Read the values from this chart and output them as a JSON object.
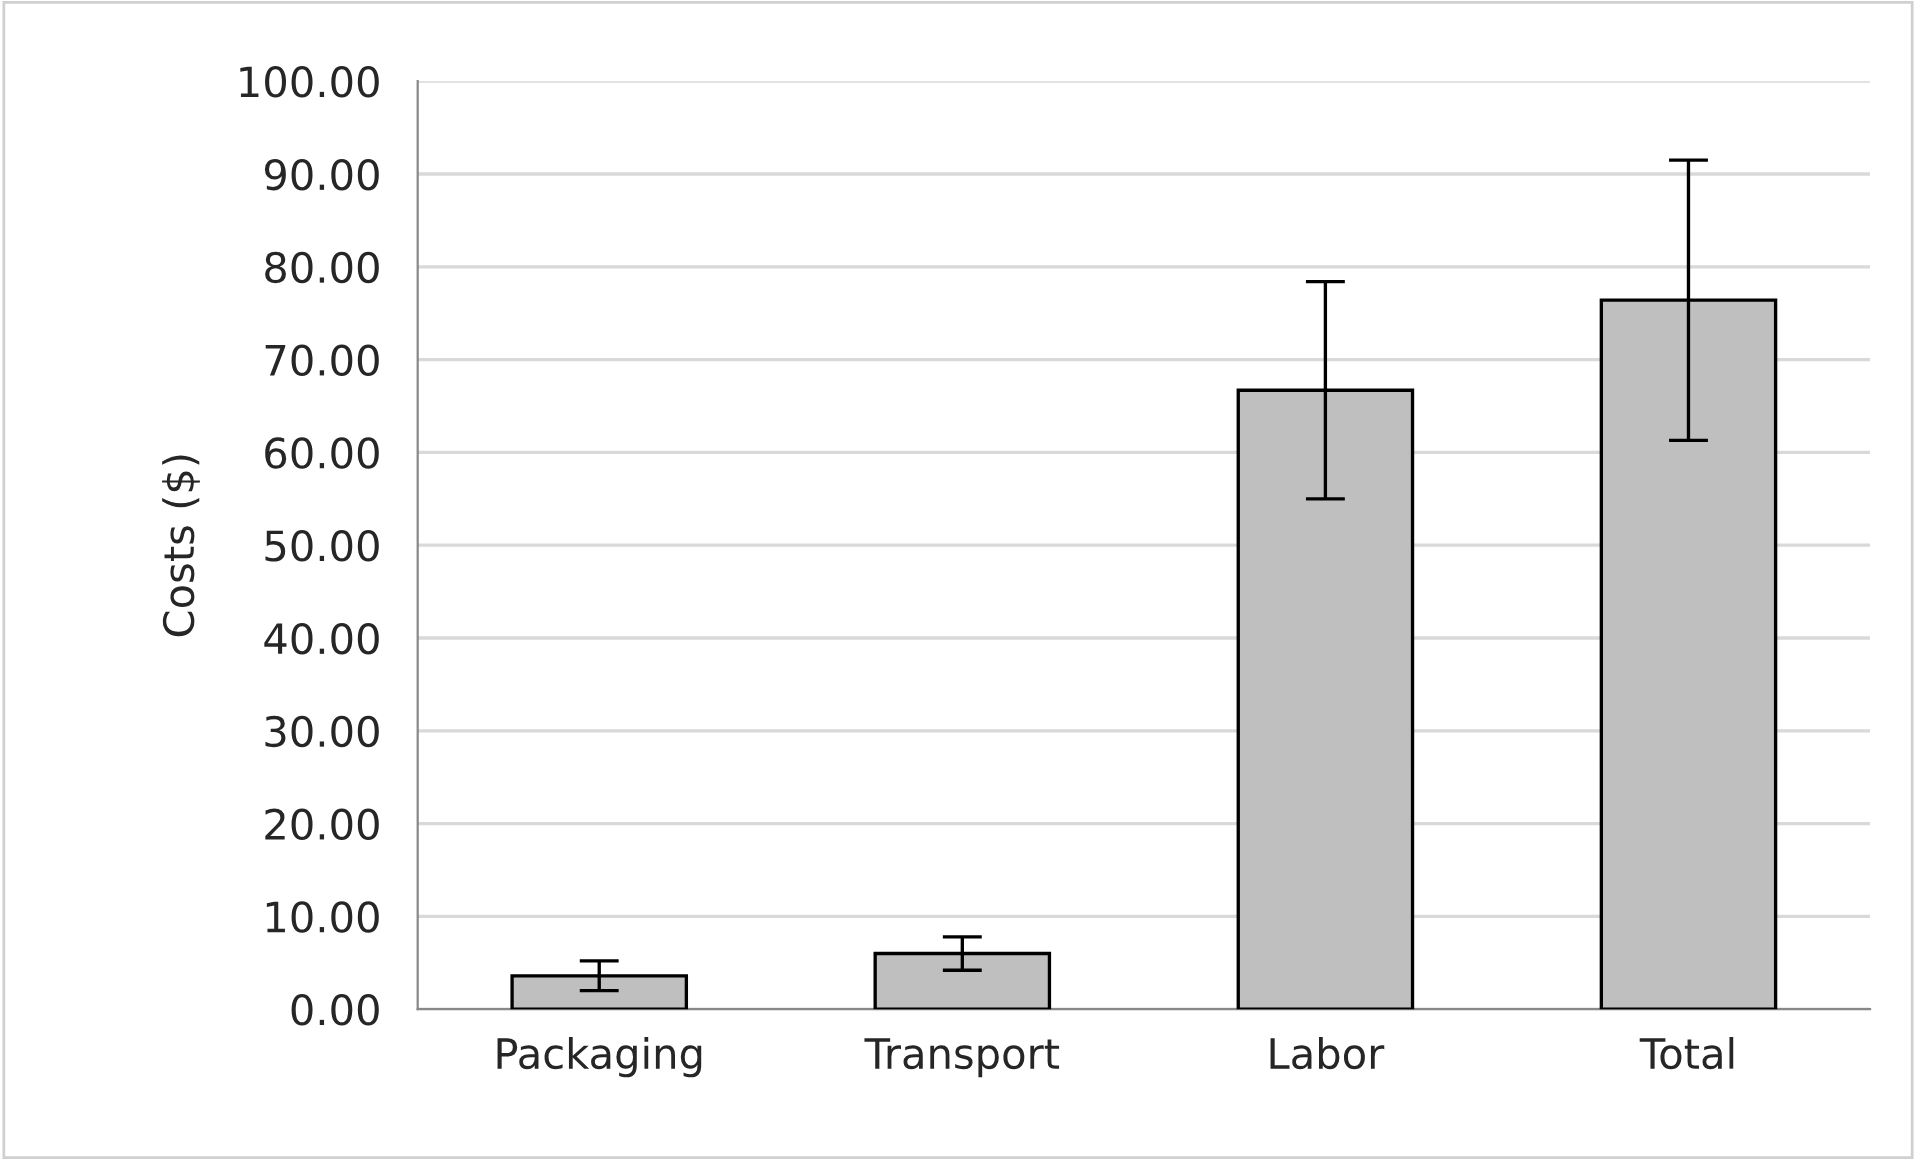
{
  "chart_data": {
    "type": "bar",
    "ylabel": "Costs ($)",
    "categories": [
      "Packaging",
      "Transport",
      "Labor",
      "Total"
    ],
    "values": [
      3.6,
      6.0,
      66.7,
      76.4
    ],
    "errors": [
      1.6,
      1.8,
      11.7,
      15.1
    ],
    "color": "#bfbfbf",
    "ylim": [
      0,
      100
    ],
    "yticks": [
      {
        "value": 0,
        "label": "0.00"
      },
      {
        "value": 10,
        "label": "10.00"
      },
      {
        "value": 20,
        "label": "20.00"
      },
      {
        "value": 30,
        "label": "30.00"
      },
      {
        "value": 40,
        "label": "40.00"
      },
      {
        "value": 50,
        "label": "50.00"
      },
      {
        "value": 60,
        "label": "60.00"
      },
      {
        "value": 70,
        "label": "70.00"
      },
      {
        "value": 80,
        "label": "80.00"
      },
      {
        "value": 90,
        "label": "90.00"
      },
      {
        "value": 100,
        "label": "100.00"
      }
    ],
    "grid": "y",
    "legend": false
  }
}
